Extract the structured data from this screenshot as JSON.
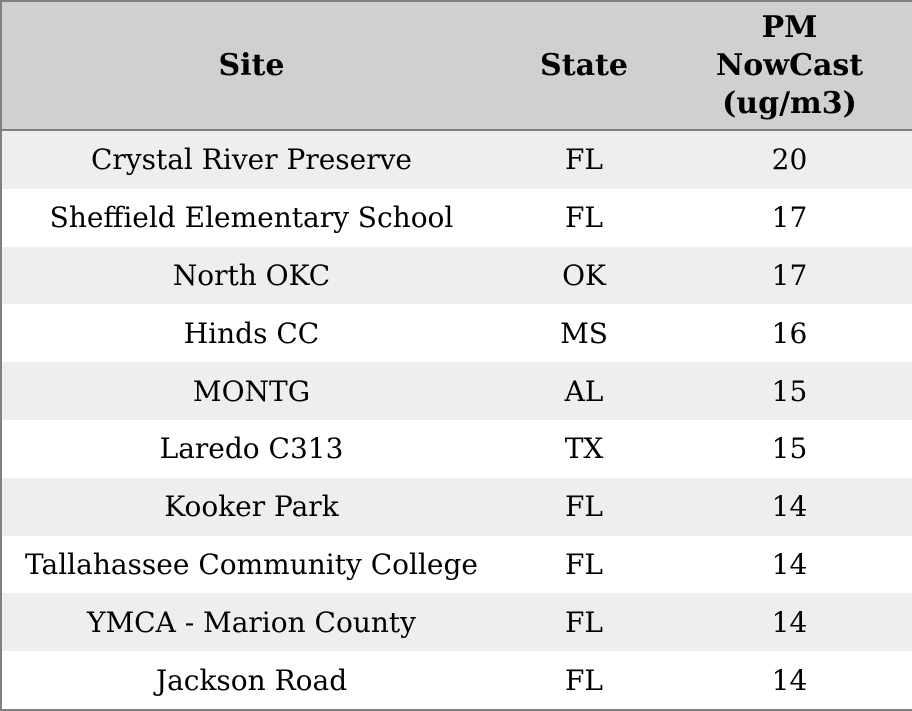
{
  "colors": {
    "header_bg": "#d0d0d0",
    "border": "#808080",
    "row_alt_bg": "#eeeeee",
    "row_bg": "#ffffff",
    "text": "#000000"
  },
  "table": {
    "headers": {
      "site": "Site",
      "state": "State",
      "pm_lines": [
        "PM",
        "NowCast",
        "(ug/m3)"
      ]
    },
    "rows": [
      {
        "site": "Crystal River Preserve",
        "state": "FL",
        "pm": "20"
      },
      {
        "site": "Sheffield Elementary School",
        "state": "FL",
        "pm": "17"
      },
      {
        "site": "North OKC",
        "state": "OK",
        "pm": "17"
      },
      {
        "site": "Hinds CC",
        "state": "MS",
        "pm": "16"
      },
      {
        "site": "MONTG",
        "state": "AL",
        "pm": "15"
      },
      {
        "site": "Laredo C313",
        "state": "TX",
        "pm": "15"
      },
      {
        "site": "Kooker Park",
        "state": "FL",
        "pm": "14"
      },
      {
        "site": "Tallahassee Community College",
        "state": "FL",
        "pm": "14"
      },
      {
        "site": "YMCA - Marion County",
        "state": "FL",
        "pm": "14"
      },
      {
        "site": "Jackson Road",
        "state": "FL",
        "pm": "14"
      }
    ]
  },
  "chart_data": {
    "type": "table",
    "title": "",
    "columns": [
      "Site",
      "State",
      "PM NowCast (ug/m3)"
    ],
    "rows": [
      [
        "Crystal River Preserve",
        "FL",
        20
      ],
      [
        "Sheffield Elementary School",
        "FL",
        17
      ],
      [
        "North OKC",
        "OK",
        17
      ],
      [
        "Hinds CC",
        "MS",
        16
      ],
      [
        "MONTG",
        "AL",
        15
      ],
      [
        "Laredo C313",
        "TX",
        15
      ],
      [
        "Kooker Park",
        "FL",
        14
      ],
      [
        "Tallahassee Community College",
        "FL",
        14
      ],
      [
        "YMCA - Marion County",
        "FL",
        14
      ],
      [
        "Jackson Road",
        "FL",
        14
      ]
    ],
    "layout": {
      "header_row": true,
      "zebra_striping": true,
      "text_align": "center"
    }
  }
}
